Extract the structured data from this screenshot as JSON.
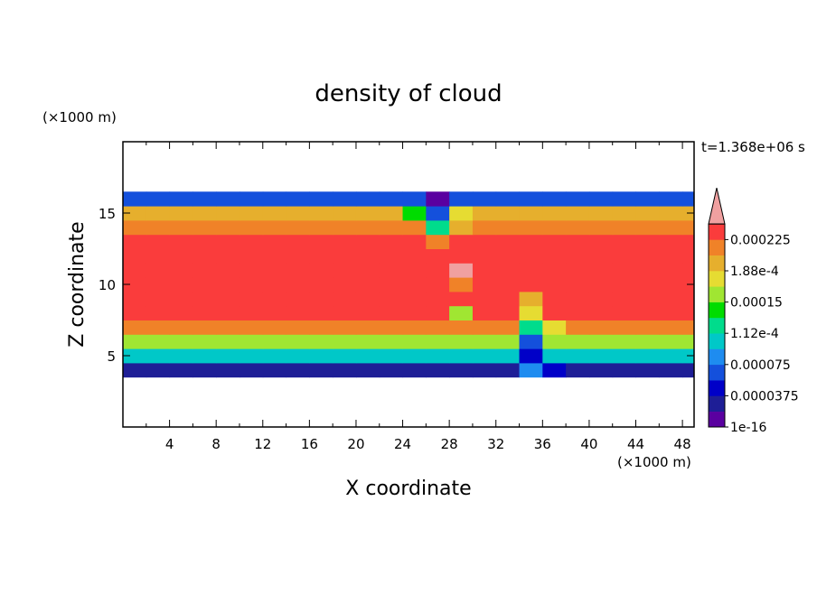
{
  "chart_data": {
    "type": "contour",
    "title": "density of cloud",
    "xlabel": "X coordinate",
    "ylabel": "Z coordinate",
    "x_unit_label": "(×1000 m)",
    "y_unit_label": "(×1000 m)",
    "time_label": "t=1.368e+06 s",
    "xlim": [
      0,
      49
    ],
    "ylim": [
      0,
      20
    ],
    "xticks": [
      4,
      8,
      12,
      16,
      20,
      24,
      28,
      32,
      36,
      40,
      44,
      48
    ],
    "yticks": [
      5,
      10,
      15
    ],
    "x": [
      1,
      3,
      5,
      7,
      9,
      11,
      13,
      15,
      17,
      19,
      21,
      23,
      25,
      27,
      29,
      31,
      33,
      35,
      37,
      39,
      41,
      43,
      45,
      47,
      49
    ],
    "y": [
      4,
      5,
      6,
      7,
      8,
      9,
      10,
      11,
      12,
      13,
      14,
      15,
      16
    ],
    "values": [
      [
        3e-05,
        3e-05,
        3e-05,
        3e-05,
        3e-05,
        3e-05,
        3e-05,
        3e-05,
        3e-05,
        3e-05,
        3e-05,
        3e-05,
        3e-05,
        3e-05,
        3e-05,
        3e-05,
        3e-05,
        8e-05,
        4e-05,
        3e-05,
        3e-05,
        3e-05,
        3e-05,
        3e-05,
        3e-05
      ],
      [
        0.0001,
        0.0001,
        0.0001,
        0.0001,
        0.0001,
        0.0001,
        0.0001,
        0.0001,
        0.0001,
        0.0001,
        0.0001,
        0.0001,
        0.0001,
        0.0001,
        0.0001,
        0.0001,
        0.0001,
        4e-05,
        0.0001,
        0.0001,
        0.0001,
        0.0001,
        0.0001,
        0.0001,
        0.0001
      ],
      [
        0.00016,
        0.00016,
        0.00016,
        0.00016,
        0.00016,
        0.00016,
        0.00016,
        0.00016,
        0.00016,
        0.00016,
        0.00016,
        0.00016,
        0.00016,
        0.00016,
        0.00016,
        0.00016,
        0.00016,
        7e-05,
        0.00016,
        0.00016,
        0.00016,
        0.00016,
        0.00016,
        0.00016,
        0.00016
      ],
      [
        0.00021,
        0.00021,
        0.00021,
        0.00021,
        0.00021,
        0.00021,
        0.00021,
        0.00021,
        0.00021,
        0.00021,
        0.00021,
        0.00021,
        0.00021,
        0.00021,
        0.00021,
        0.00021,
        0.00021,
        0.00013,
        0.00018,
        0.00021,
        0.00021,
        0.00021,
        0.00021,
        0.00021,
        0.00021
      ],
      [
        0.00023,
        0.00023,
        0.00023,
        0.00023,
        0.00023,
        0.00023,
        0.00023,
        0.00023,
        0.00023,
        0.00023,
        0.00023,
        0.00023,
        0.00023,
        0.00023,
        0.00015,
        0.00023,
        0.00023,
        0.00018,
        0.00023,
        0.00023,
        0.00023,
        0.00023,
        0.00023,
        0.00023,
        0.00023
      ],
      [
        0.00024,
        0.00024,
        0.00024,
        0.00024,
        0.00024,
        0.00024,
        0.00024,
        0.00024,
        0.00024,
        0.00024,
        0.00024,
        0.00024,
        0.00024,
        0.00024,
        0.00024,
        0.00024,
        0.00024,
        0.0002,
        0.00024,
        0.00024,
        0.00024,
        0.00024,
        0.00024,
        0.00024,
        0.00024
      ],
      [
        0.00024,
        0.00024,
        0.00024,
        0.00024,
        0.00024,
        0.00024,
        0.00024,
        0.00024,
        0.00024,
        0.00024,
        0.00024,
        0.00024,
        0.00024,
        0.00024,
        0.00022,
        0.00024,
        0.00024,
        0.00024,
        0.00024,
        0.00024,
        0.00024,
        0.00024,
        0.00024,
        0.00024,
        0.00024
      ],
      [
        0.00024,
        0.00024,
        0.00024,
        0.00024,
        0.00024,
        0.00024,
        0.00024,
        0.00024,
        0.00024,
        0.00024,
        0.00024,
        0.00024,
        0.00024,
        0.00024,
        0.00026,
        0.00024,
        0.00024,
        0.00024,
        0.00024,
        0.00024,
        0.00024,
        0.00024,
        0.00024,
        0.00024,
        0.00024
      ],
      [
        0.00024,
        0.00024,
        0.00024,
        0.00024,
        0.00024,
        0.00024,
        0.00024,
        0.00024,
        0.00024,
        0.00024,
        0.00024,
        0.00024,
        0.00024,
        0.00024,
        0.00024,
        0.00024,
        0.00024,
        0.00024,
        0.00024,
        0.00024,
        0.00024,
        0.00024,
        0.00024,
        0.00024,
        0.00024
      ],
      [
        0.00023,
        0.00023,
        0.00023,
        0.00023,
        0.00023,
        0.00023,
        0.00023,
        0.00023,
        0.00023,
        0.00023,
        0.00023,
        0.00023,
        0.00023,
        0.00022,
        0.00023,
        0.00023,
        0.00023,
        0.00023,
        0.00023,
        0.00023,
        0.00023,
        0.00023,
        0.00023,
        0.00023,
        0.00023
      ],
      [
        0.00022,
        0.00022,
        0.00022,
        0.00022,
        0.00022,
        0.00022,
        0.00022,
        0.00022,
        0.00022,
        0.00022,
        0.00022,
        0.00022,
        0.00022,
        0.00012,
        0.00019,
        0.00022,
        0.00022,
        0.00022,
        0.00022,
        0.00022,
        0.00022,
        0.00022,
        0.00022,
        0.00022,
        0.00022
      ],
      [
        0.0002,
        0.0002,
        0.0002,
        0.0002,
        0.0002,
        0.0002,
        0.0002,
        0.0002,
        0.0002,
        0.0002,
        0.0002,
        0.0002,
        0.00014,
        6e-05,
        0.00017,
        0.0002,
        0.0002,
        0.0002,
        0.0002,
        0.0002,
        0.0002,
        0.0002,
        0.0002,
        0.0002,
        0.0002
      ],
      [
        6e-05,
        6e-05,
        6e-05,
        6e-05,
        6e-05,
        6e-05,
        6e-05,
        6e-05,
        6e-05,
        6e-05,
        6e-05,
        6e-05,
        6e-05,
        2e-06,
        6e-05,
        6e-05,
        6e-05,
        6e-05,
        6e-05,
        6e-05,
        6e-05,
        6e-05,
        6e-05,
        6e-05,
        6e-05
      ]
    ],
    "colorbar": {
      "ticks": [
        1e-16,
        3.75e-05,
        7.5e-05,
        {
          "value": 0.0001125,
          "label": "1.12e-4"
        },
        0.00015,
        {
          "value": 0.0001875,
          "label": "1.88e-4"
        },
        0.000225
      ],
      "colors": [
        "#5a00a0",
        "#1e1e96",
        "#0000c8",
        "#1450dc",
        "#1e8cf0",
        "#00c8c8",
        "#00dc8c",
        "#00dc00",
        "#a0e632",
        "#e6dc32",
        "#e6af2d",
        "#f08228",
        "#fa3c3c"
      ],
      "over_color": "#f0a0a0"
    }
  }
}
